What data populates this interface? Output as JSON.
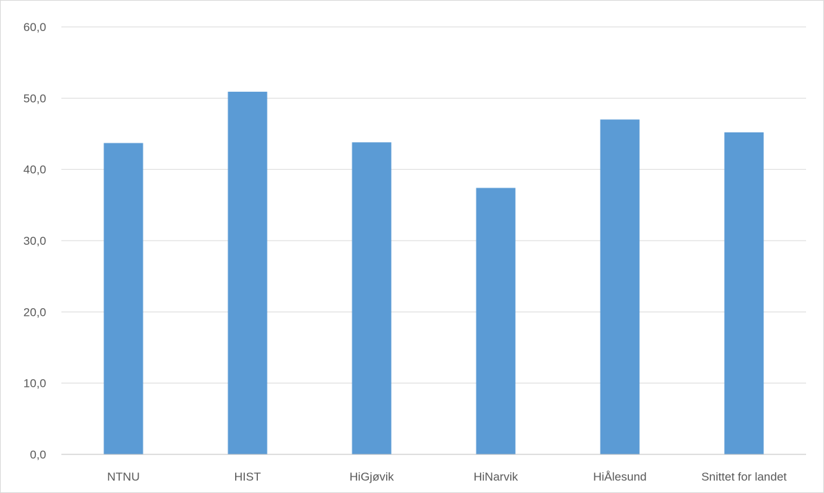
{
  "chart_data": {
    "type": "bar",
    "title": "",
    "xlabel": "",
    "ylabel": "",
    "categories": [
      "NTNU",
      "HIST",
      "HiGjøvik",
      "HiNarvik",
      "HiÅlesund",
      "Snittet for landet"
    ],
    "values": [
      43.7,
      50.9,
      43.8,
      37.4,
      47.0,
      45.2
    ],
    "ylim": [
      0,
      60
    ],
    "yticks": [
      "0,0",
      "10,0",
      "20,0",
      "30,0",
      "40,0",
      "50,0",
      "60,0"
    ],
    "grid": true,
    "legend": "none",
    "bar_color": "#5b9bd5",
    "grid_color": "#d9d9d9",
    "axis_color": "#bfbfbf",
    "label_color": "#595959"
  }
}
